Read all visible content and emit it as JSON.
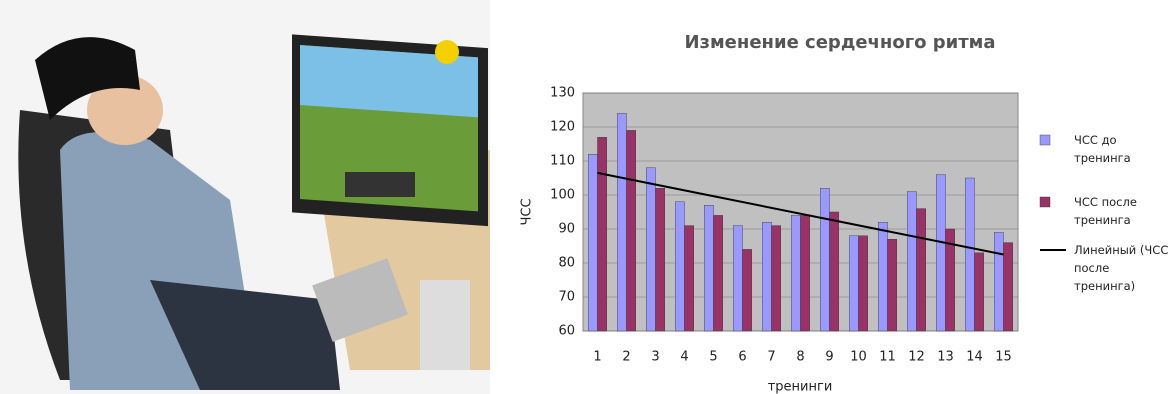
{
  "chart_data": {
    "type": "bar",
    "title": "Изменение сердечного ритма",
    "y_label": "ЧСС",
    "x_label": "тренинги",
    "categories": [
      "1",
      "2",
      "3",
      "4",
      "5",
      "6",
      "7",
      "8",
      "9",
      "10",
      "11",
      "12",
      "13",
      "14",
      "15"
    ],
    "series": [
      {
        "name": "ЧСС до тренинга",
        "color": "#9999ff",
        "values": [
          112,
          124,
          108,
          98,
          97,
          91,
          92,
          94,
          102,
          88,
          92,
          101,
          106,
          105,
          89
        ]
      },
      {
        "name": "ЧСС после тренинга",
        "color": "#993366",
        "values": [
          117,
          119,
          102,
          91,
          94,
          84,
          91,
          94,
          95,
          88,
          87,
          96,
          90,
          83,
          86
        ]
      }
    ],
    "trendline": {
      "name": "Линейный (ЧСС после тренинга)",
      "color": "#000000",
      "start": 106.5,
      "end": 82.5
    },
    "ylim": [
      60,
      130
    ],
    "yticks": [
      60,
      70,
      80,
      90,
      100,
      110,
      120,
      130
    ],
    "grid": true
  }
}
